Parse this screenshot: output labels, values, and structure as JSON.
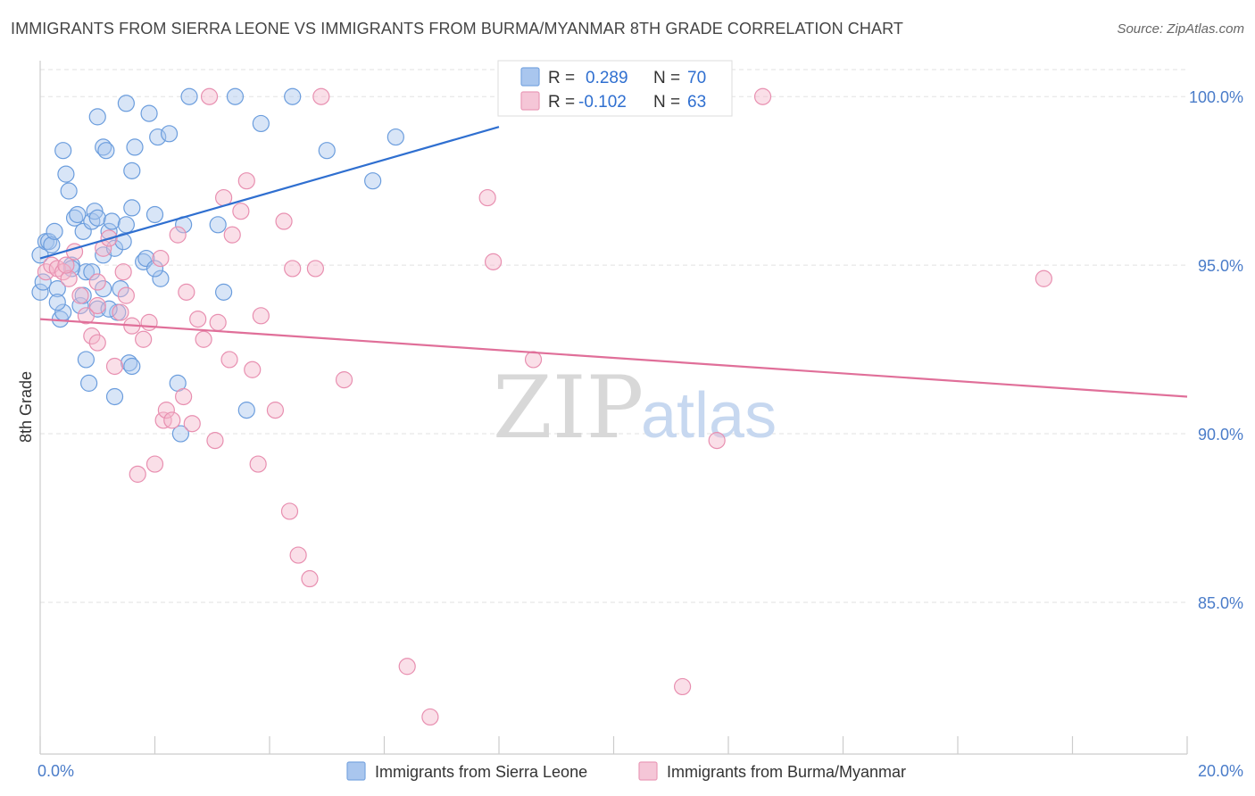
{
  "title": "IMMIGRANTS FROM SIERRA LEONE VS IMMIGRANTS FROM BURMA/MYANMAR 8TH GRADE CORRELATION CHART",
  "source": "Source: ZipAtlas.com",
  "watermark": {
    "zip": "ZIP",
    "atlas": "atlas"
  },
  "colors": {
    "blue": "#2f6fd0",
    "blue_fill": "#a9c6ee",
    "pink": "#e06f99",
    "pink_fill": "#f5b8cd",
    "tick_label": "#4a7cc9",
    "grid": "#e2e2e2"
  },
  "legend": {
    "rows": [
      {
        "r_label": "R =",
        "r_value": "0.289",
        "n_label": "N =",
        "n_value": "70"
      },
      {
        "r_label": "R =",
        "r_value": "-0.102",
        "n_label": "N =",
        "n_value": "63"
      }
    ]
  },
  "chart_data": {
    "type": "scatter",
    "title": "IMMIGRANTS FROM SIERRA LEONE VS IMMIGRANTS FROM BURMA/MYANMAR 8TH GRADE CORRELATION CHART",
    "xlabel": "",
    "ylabel": "8th Grade",
    "xlim": [
      0,
      20
    ],
    "ylim": [
      80.5,
      100.8
    ],
    "x_tick_labels": [
      "0.0%",
      "20.0%"
    ],
    "y_ticks": [
      85,
      90,
      95,
      100
    ],
    "y_tick_labels": [
      "85.0%",
      "90.0%",
      "95.0%",
      "100.0%"
    ],
    "grid": true,
    "legend_position": "bottom",
    "series": [
      {
        "name": "Immigrants from Sierra Leone",
        "color": "#2f6fd0",
        "R": 0.289,
        "N": 70,
        "trend": {
          "x": [
            0.0,
            8.0
          ],
          "y": [
            95.2,
            99.1
          ]
        },
        "points": [
          [
            0.0,
            95.3
          ],
          [
            0.0,
            94.2
          ],
          [
            0.05,
            94.5
          ],
          [
            0.1,
            95.7
          ],
          [
            0.15,
            95.7
          ],
          [
            0.2,
            95.6
          ],
          [
            0.25,
            96.0
          ],
          [
            0.3,
            94.3
          ],
          [
            0.35,
            93.4
          ],
          [
            0.4,
            93.6
          ],
          [
            0.4,
            98.4
          ],
          [
            0.45,
            97.7
          ],
          [
            0.5,
            97.2
          ],
          [
            0.55,
            95.0
          ],
          [
            0.6,
            96.4
          ],
          [
            0.65,
            96.5
          ],
          [
            0.7,
            93.8
          ],
          [
            0.75,
            94.1
          ],
          [
            0.75,
            96.0
          ],
          [
            0.8,
            92.2
          ],
          [
            0.8,
            94.8
          ],
          [
            0.85,
            91.5
          ],
          [
            0.9,
            96.3
          ],
          [
            0.9,
            94.8
          ],
          [
            0.95,
            96.6
          ],
          [
            1.0,
            93.7
          ],
          [
            1.0,
            96.4
          ],
          [
            1.0,
            99.4
          ],
          [
            1.1,
            94.3
          ],
          [
            1.1,
            95.3
          ],
          [
            1.1,
            98.5
          ],
          [
            1.15,
            98.4
          ],
          [
            1.2,
            96.0
          ],
          [
            1.25,
            96.3
          ],
          [
            1.3,
            95.5
          ],
          [
            1.3,
            91.1
          ],
          [
            1.35,
            93.6
          ],
          [
            1.4,
            94.3
          ],
          [
            1.45,
            95.7
          ],
          [
            1.5,
            99.8
          ],
          [
            1.5,
            96.2
          ],
          [
            1.55,
            92.1
          ],
          [
            1.6,
            92.0
          ],
          [
            1.6,
            97.8
          ],
          [
            1.6,
            96.7
          ],
          [
            1.65,
            98.5
          ],
          [
            1.8,
            95.1
          ],
          [
            1.85,
            95.2
          ],
          [
            1.9,
            99.5
          ],
          [
            2.0,
            96.5
          ],
          [
            2.05,
            98.8
          ],
          [
            2.1,
            94.6
          ],
          [
            2.25,
            98.9
          ],
          [
            2.4,
            91.5
          ],
          [
            2.45,
            90.0
          ],
          [
            2.5,
            96.2
          ],
          [
            2.6,
            100.0
          ],
          [
            3.1,
            96.2
          ],
          [
            3.2,
            94.2
          ],
          [
            3.4,
            100.0
          ],
          [
            3.6,
            90.7
          ],
          [
            3.85,
            99.2
          ],
          [
            4.4,
            100.0
          ],
          [
            5.0,
            98.4
          ],
          [
            5.8,
            97.5
          ],
          [
            6.2,
            98.8
          ],
          [
            0.3,
            93.9
          ],
          [
            0.55,
            94.9
          ],
          [
            1.2,
            93.7
          ],
          [
            2.0,
            94.9
          ]
        ]
      },
      {
        "name": "Immigrants from Burma/Myanmar",
        "color": "#e06f99",
        "R": -0.102,
        "N": 63,
        "trend": {
          "x": [
            0.0,
            20.0
          ],
          "y": [
            93.4,
            91.1
          ]
        },
        "points": [
          [
            0.1,
            94.8
          ],
          [
            0.2,
            95.0
          ],
          [
            0.3,
            94.9
          ],
          [
            0.4,
            94.8
          ],
          [
            0.5,
            94.6
          ],
          [
            0.6,
            95.4
          ],
          [
            0.7,
            94.1
          ],
          [
            0.8,
            93.5
          ],
          [
            0.9,
            92.9
          ],
          [
            1.0,
            93.8
          ],
          [
            1.0,
            92.7
          ],
          [
            1.1,
            95.5
          ],
          [
            1.2,
            95.8
          ],
          [
            1.3,
            92.0
          ],
          [
            1.4,
            93.6
          ],
          [
            1.45,
            94.8
          ],
          [
            1.5,
            94.1
          ],
          [
            1.6,
            93.2
          ],
          [
            1.7,
            88.8
          ],
          [
            1.8,
            92.8
          ],
          [
            1.9,
            93.3
          ],
          [
            2.0,
            89.1
          ],
          [
            2.1,
            95.2
          ],
          [
            2.15,
            90.4
          ],
          [
            2.2,
            90.7
          ],
          [
            2.3,
            90.4
          ],
          [
            2.4,
            95.9
          ],
          [
            2.5,
            91.1
          ],
          [
            2.55,
            94.2
          ],
          [
            2.65,
            90.3
          ],
          [
            2.75,
            93.4
          ],
          [
            2.85,
            92.8
          ],
          [
            2.95,
            100.0
          ],
          [
            3.05,
            89.8
          ],
          [
            3.1,
            93.3
          ],
          [
            3.2,
            97.0
          ],
          [
            3.3,
            92.2
          ],
          [
            3.35,
            95.9
          ],
          [
            3.5,
            96.6
          ],
          [
            3.6,
            97.5
          ],
          [
            3.7,
            91.9
          ],
          [
            3.8,
            89.1
          ],
          [
            3.85,
            93.5
          ],
          [
            4.1,
            90.7
          ],
          [
            4.25,
            96.3
          ],
          [
            4.35,
            87.7
          ],
          [
            4.4,
            94.9
          ],
          [
            4.5,
            86.4
          ],
          [
            4.7,
            85.7
          ],
          [
            4.8,
            94.9
          ],
          [
            4.9,
            100.0
          ],
          [
            5.3,
            91.6
          ],
          [
            6.4,
            83.1
          ],
          [
            6.8,
            81.6
          ],
          [
            7.8,
            97.0
          ],
          [
            7.9,
            95.1
          ],
          [
            8.6,
            92.2
          ],
          [
            11.2,
            82.5
          ],
          [
            11.8,
            89.8
          ],
          [
            12.6,
            100.0
          ],
          [
            17.5,
            94.6
          ],
          [
            1.0,
            94.5
          ],
          [
            0.45,
            95.0
          ]
        ]
      }
    ]
  }
}
